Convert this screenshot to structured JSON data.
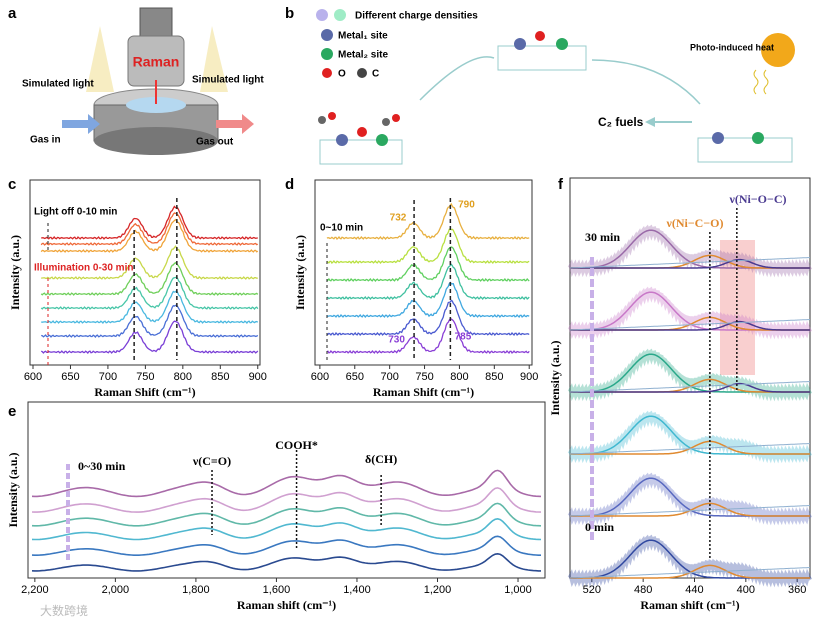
{
  "panel_a": {
    "label": "a",
    "device": "Raman",
    "light_left": "Simulated light",
    "light_right": "Simulated light",
    "gas_in": "Gas in",
    "gas_out": "Gas out"
  },
  "panel_b": {
    "label": "b",
    "legend": [
      "Different charge densities",
      "Metal₁ site",
      "Metal₂ site",
      "O",
      "C"
    ],
    "heat": "Photo-induced heat",
    "product": "C₂ fuels"
  },
  "chart_data": [
    {
      "panel": "c",
      "type": "line",
      "xlabel": "Raman Shift (cm⁻¹)",
      "ylabel": "Intensity (a.u.)",
      "xlim": [
        596,
        903
      ],
      "xticks": [
        600,
        650,
        700,
        750,
        800,
        850,
        900
      ],
      "annotations": [
        "Light off 0-10 min",
        "Illumination 0-30 min"
      ]
    },
    {
      "panel": "d",
      "type": "line",
      "xlabel": "Raman Shift (cm⁻¹)",
      "ylabel": "Intensity (a.u.)",
      "xlim": [
        593,
        904
      ],
      "xticks": [
        600,
        650,
        700,
        750,
        800,
        850,
        900
      ],
      "annotations": [
        "0~10 min"
      ],
      "peaks": [
        732,
        790,
        730,
        785
      ]
    },
    {
      "panel": "e",
      "type": "line",
      "xlabel": "Raman shift (cm⁻¹)",
      "ylabel": "Intensity (a.u.)",
      "xlim": [
        2217,
        933
      ],
      "xticks": [
        {
          "value": 2200,
          "label": "2,200"
        },
        {
          "value": 2000,
          "label": "2,000"
        },
        {
          "value": 1800,
          "label": "1,800"
        },
        {
          "value": 1600,
          "label": "1,600"
        },
        {
          "value": 1400,
          "label": "1,400"
        },
        {
          "value": 1200,
          "label": "1,200"
        },
        {
          "value": 1000,
          "label": "1,000"
        }
      ],
      "annotations": [
        "0~30 min",
        "ν(C=O)",
        "COOH*",
        "δ(CH)"
      ]
    },
    {
      "panel": "f",
      "type": "line",
      "xlabel": "Raman shift (cm⁻¹)",
      "ylabel": "Intensity (a.u.)",
      "xlim": [
        537,
        350
      ],
      "xticks": [
        520,
        480,
        440,
        400,
        360
      ],
      "annotations": [
        "30 min",
        "0 min",
        "ν(Ni−C−O)",
        "ν(Ni−O−C)"
      ]
    }
  ],
  "watermark": "大数跨境"
}
